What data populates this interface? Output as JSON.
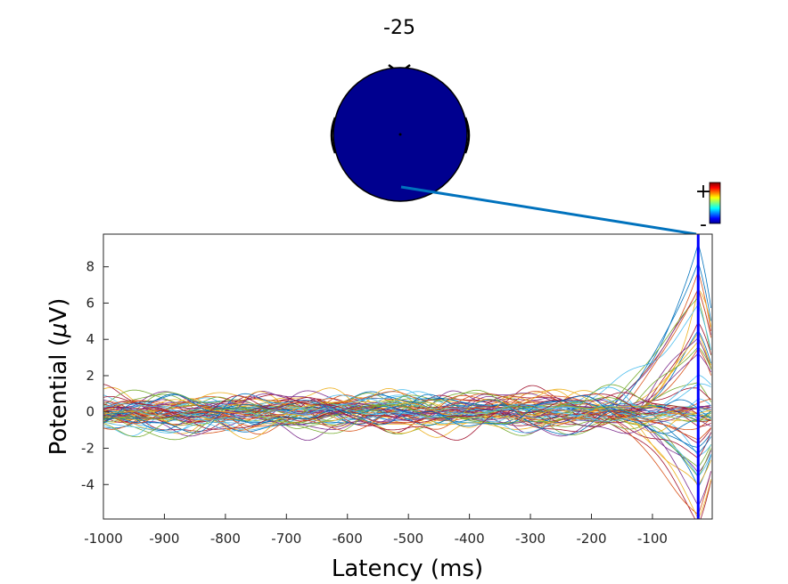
{
  "chart_data": {
    "type": "line",
    "title": "-25",
    "xlabel": "Latency (ms)",
    "ylabel_prefix": "Potential (",
    "ylabel_mu": "μ",
    "ylabel_suffix": "V)",
    "xlim": [
      -1000,
      -2
    ],
    "ylim": [
      -5.9,
      9.8
    ],
    "xticks": [
      -1000,
      -900,
      -800,
      -700,
      -600,
      -500,
      -400,
      -300,
      -200,
      -100
    ],
    "yticks": [
      -4,
      -2,
      0,
      2,
      4,
      6,
      8
    ],
    "xtick_labels": [
      "-1000",
      "-900",
      "-800",
      "-700",
      "-600",
      "-500",
      "-400",
      "-300",
      "-200",
      "-100"
    ],
    "ytick_labels": [
      "-4",
      "-2",
      "0",
      "2",
      "4",
      "6",
      "8"
    ],
    "marker_latency": -25,
    "marker_color": "#0000ff",
    "connector_color": "#0072bd",
    "n_channels": 64,
    "final_values_up": [
      9.6,
      8.5,
      7.4,
      6.8,
      6.2,
      5.6,
      5.0,
      4.4,
      3.8,
      3.2,
      2.6,
      2.0,
      1.4,
      0.8,
      8.0,
      6.5,
      5.3,
      4.1,
      2.9,
      1.7
    ],
    "final_values_down": [
      -5.8,
      -5.2,
      -4.6,
      -4.0,
      -3.4,
      -2.8,
      -2.2,
      -1.6,
      -1.0,
      -0.5,
      -5.5,
      -4.8,
      -4.2,
      -3.6,
      -3.0,
      -2.4,
      -1.8,
      -1.2,
      -0.7,
      -0.3
    ],
    "colormap_plus": "+",
    "colormap_minus": "-",
    "scalp_color": "#00008f",
    "grid": false
  }
}
